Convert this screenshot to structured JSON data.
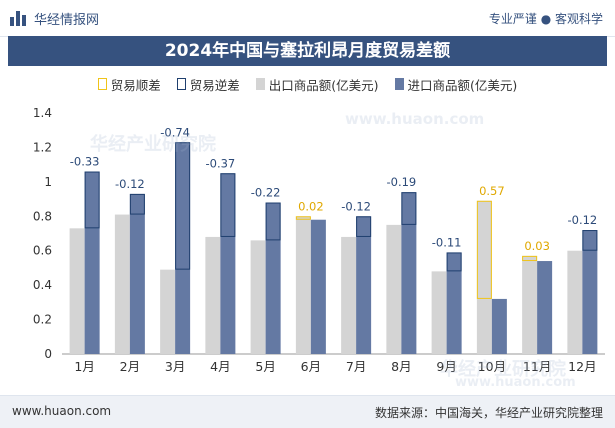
{
  "header": {
    "brand": "华经情报网",
    "slogan": "专业严谨 ● 客观科学"
  },
  "watermark": "华经产业研究院",
  "watermark_url": "www.huaon.com",
  "footer": {
    "site": "www.huaon.com",
    "source": "数据来源：中国海关，华经产业研究院整理"
  },
  "colors": {
    "header_band": "#36527f",
    "surplus": "#f0c419",
    "deficit": "#1f3f6e",
    "exports": "#d4d4d4",
    "imports": "#6479a3"
  },
  "chart_data": {
    "type": "bar",
    "title": "2024年中国与塞拉利昂月度贸易差额",
    "categories": [
      "1月",
      "2月",
      "3月",
      "4月",
      "5月",
      "6月",
      "7月",
      "8月",
      "9月",
      "10月",
      "11月",
      "12月"
    ],
    "series": [
      {
        "name": "出口商品额(亿美元)",
        "values": [
          0.73,
          0.81,
          0.49,
          0.68,
          0.66,
          0.8,
          0.68,
          0.75,
          0.48,
          0.89,
          0.57,
          0.6
        ]
      },
      {
        "name": "进口商品额(亿美元)",
        "values": [
          1.06,
          0.93,
          1.23,
          1.05,
          0.88,
          0.78,
          0.8,
          0.94,
          0.59,
          0.32,
          0.54,
          0.72
        ]
      }
    ],
    "balance": {
      "values": [
        -0.33,
        -0.12,
        -0.74,
        -0.37,
        -0.22,
        0.02,
        -0.12,
        -0.19,
        -0.11,
        0.57,
        0.03,
        -0.12
      ],
      "labels": [
        "-0.33",
        "-0.12",
        "-0.74",
        "-0.37",
        "-0.22",
        "0.02",
        "-0.12",
        "-0.19",
        "-0.11",
        "0.57",
        "0.03",
        "-0.12"
      ]
    },
    "legend": [
      "贸易顺差",
      "贸易逆差",
      "出口商品额(亿美元)",
      "进口商品额(亿美元)"
    ],
    "legend_position": "top",
    "ylim": [
      0,
      1.4
    ],
    "yticks": [
      "0",
      "0.2",
      "0.4",
      "0.6",
      "0.8",
      "1",
      "1.2",
      "1.4"
    ],
    "grid": false
  }
}
